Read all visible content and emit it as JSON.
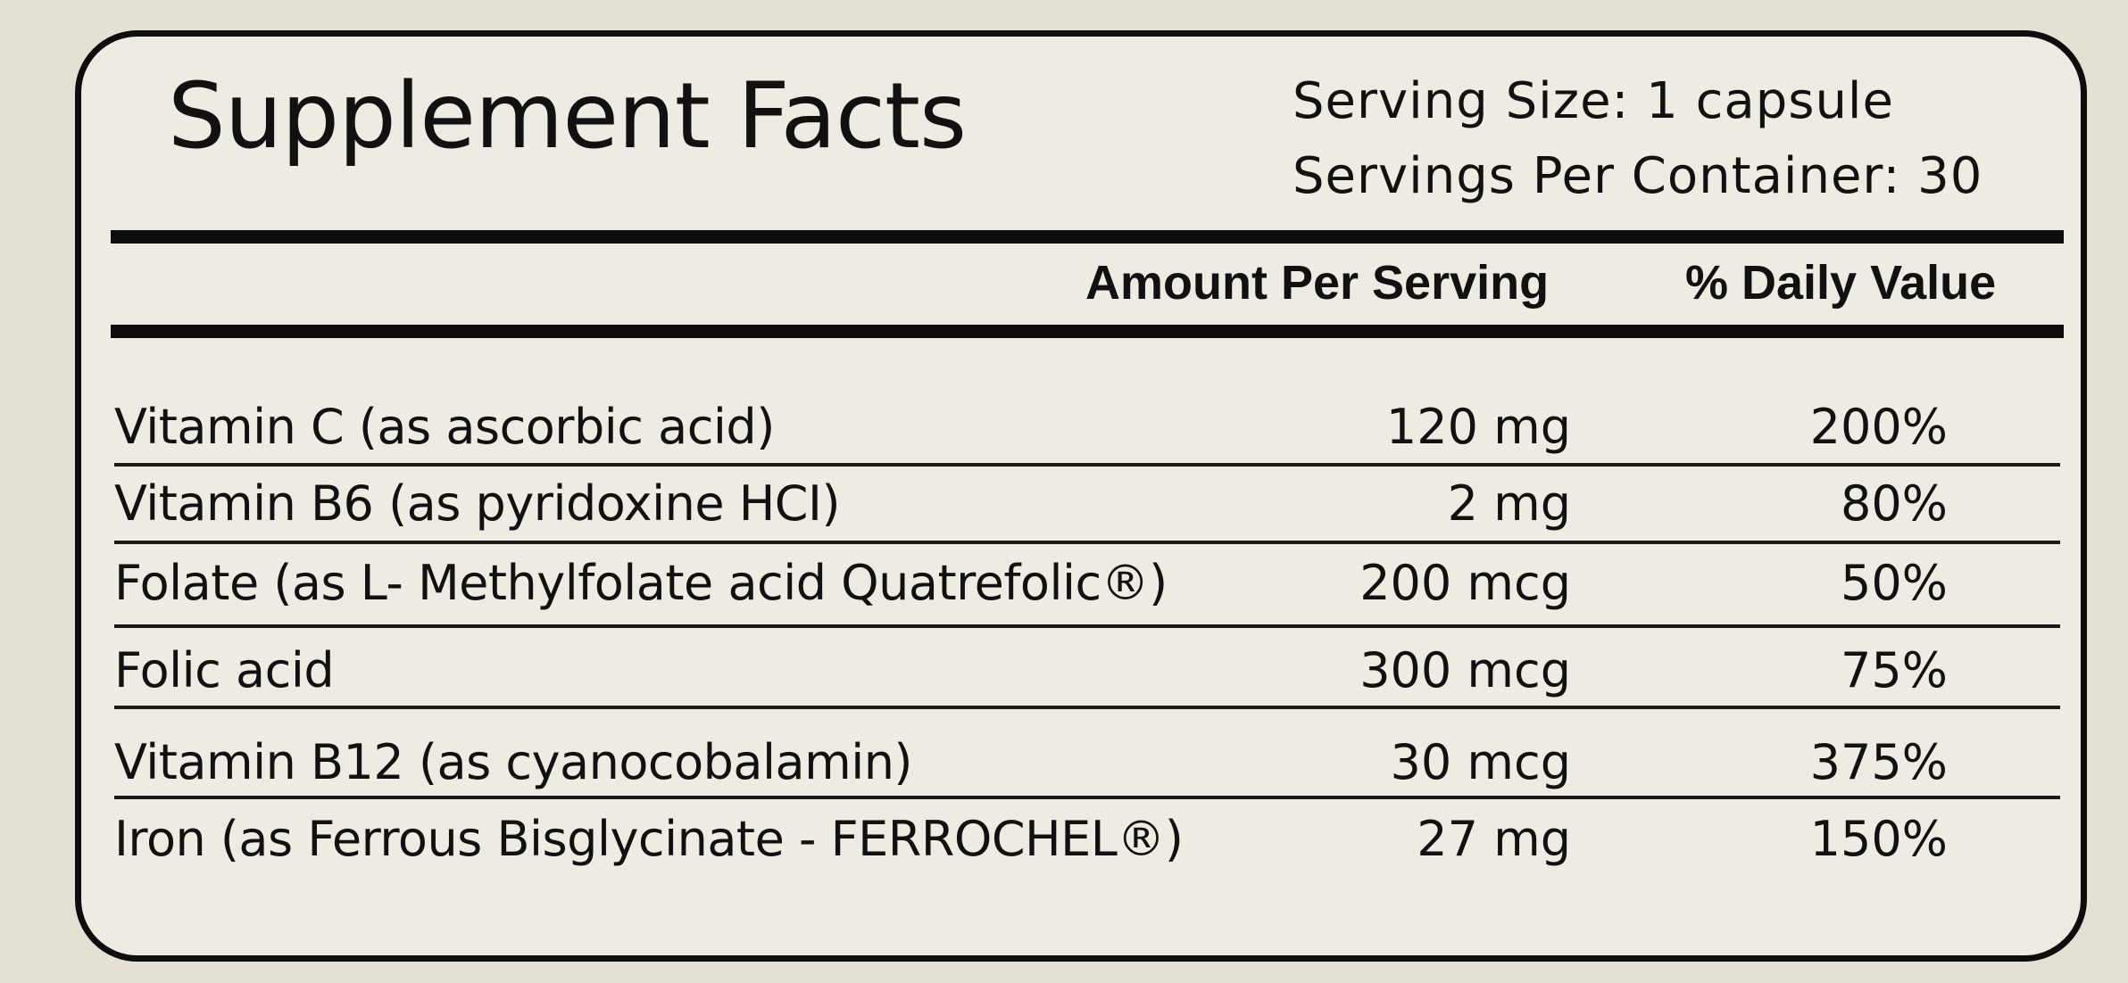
{
  "label": {
    "title": "Supplement Facts",
    "serving_size": "Serving Size: 1 capsule",
    "servings_per_container": "Servings Per Container: 30",
    "headers": {
      "amount": "Amount Per Serving",
      "daily_value": "% Daily Value"
    },
    "rows": [
      {
        "name": "Vitamin C (as ascorbic acid)",
        "amount": "120 mg",
        "dv": "200%"
      },
      {
        "name": "Vitamin B6 (as pyridoxine HCI)",
        "amount": "2 mg",
        "dv": "80%"
      },
      {
        "name": "Folate (as L- Methylfolate acid Quatrefolic®)",
        "amount": "200 mcg",
        "dv": "50%"
      },
      {
        "name": "Folic acid",
        "amount": "300 mcg",
        "dv": "75%"
      },
      {
        "name": "Vitamin B12 (as cyanocobalamin)",
        "amount": "30 mcg",
        "dv": "375%"
      },
      {
        "name": "Iron (as Ferrous Bisglycinate - FERROCHEL®)",
        "amount": "27 mg",
        "dv": "150%"
      }
    ]
  },
  "colors": {
    "background": "#e4e0d3",
    "ink": "#0d0d0d"
  }
}
